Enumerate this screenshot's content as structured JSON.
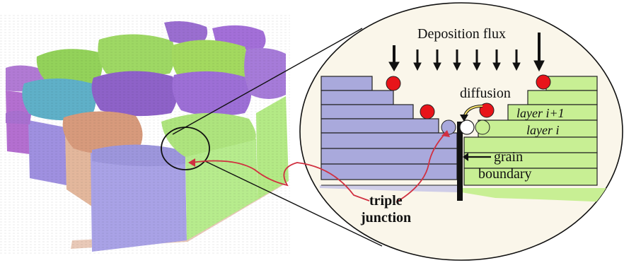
{
  "labels": {
    "deposition_flux": "Deposition flux",
    "diffusion": "diffusion",
    "layer_i_plus_1": "layer i+1",
    "layer_i": "layer i",
    "grain": "grain",
    "boundary": "boundary",
    "triple": "triple",
    "junction": "junction"
  },
  "colors": {
    "grain_purple": "#a9a9dc",
    "grain_green": "#c8ef94",
    "adatom_red": "#e8141a",
    "link_line_red": "#d03040",
    "boundary_black": "#111111"
  }
}
